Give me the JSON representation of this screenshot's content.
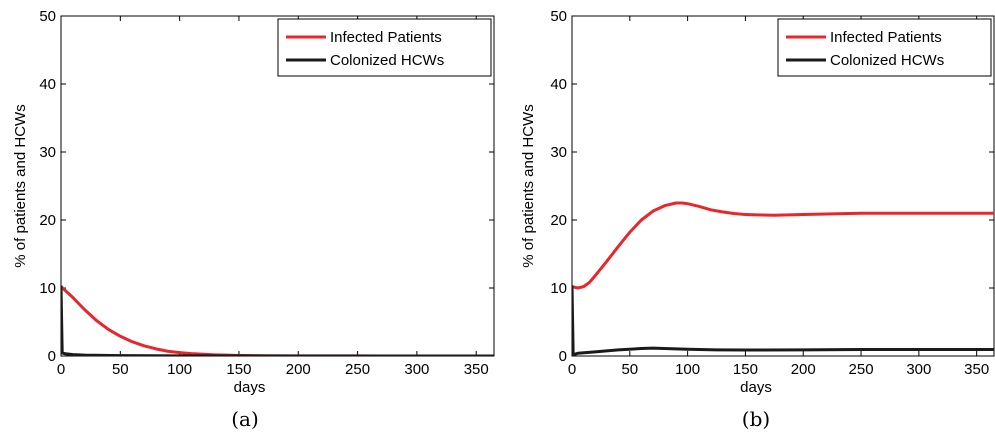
{
  "chart_data": [
    {
      "type": "line",
      "caption": "(a)",
      "xlabel": "days",
      "ylabel": "% of patients and HCWs",
      "xlim": [
        0,
        365
      ],
      "ylim": [
        0,
        50
      ],
      "xticks": [
        "0",
        "50",
        "100",
        "150",
        "200",
        "250",
        "300",
        "350"
      ],
      "yticks": [
        "0",
        "10",
        "20",
        "30",
        "40",
        "50"
      ],
      "grid": false,
      "legend_position": "top-right",
      "series": [
        {
          "name": "Infected Patients",
          "color": "#e8262b",
          "x": [
            0,
            10,
            20,
            30,
            40,
            50,
            60,
            70,
            80,
            90,
            100,
            110,
            120,
            130,
            140,
            150,
            175,
            200,
            250,
            300,
            365
          ],
          "y": [
            10.2,
            8.6,
            6.8,
            5.2,
            3.9,
            2.9,
            2.1,
            1.5,
            1.05,
            0.7,
            0.5,
            0.35,
            0.25,
            0.17,
            0.12,
            0.08,
            0.04,
            0.02,
            0.01,
            0.0,
            0.0
          ]
        },
        {
          "name": "Colonized HCWs",
          "color": "#1a1a1a",
          "x": [
            0,
            1,
            3,
            10,
            20,
            50,
            100,
            150,
            200,
            250,
            300,
            365
          ],
          "y": [
            10.2,
            0.45,
            0.35,
            0.2,
            0.12,
            0.05,
            0.02,
            0.01,
            0.0,
            0.0,
            0.0,
            0.0
          ]
        }
      ]
    },
    {
      "type": "line",
      "caption": "(b)",
      "xlabel": "days",
      "ylabel": "% of patients and HCWs",
      "xlim": [
        0,
        365
      ],
      "ylim": [
        0,
        50
      ],
      "xticks": [
        "0",
        "50",
        "100",
        "150",
        "200",
        "250",
        "300",
        "350"
      ],
      "yticks": [
        "0",
        "10",
        "20",
        "30",
        "40",
        "50"
      ],
      "grid": false,
      "legend_position": "top-right",
      "series": [
        {
          "name": "Infected Patients",
          "color": "#e8262b",
          "x": [
            0,
            5,
            10,
            15,
            20,
            30,
            40,
            50,
            60,
            70,
            80,
            90,
            95,
            100,
            110,
            120,
            130,
            140,
            150,
            160,
            175,
            200,
            225,
            250,
            275,
            300,
            325,
            350,
            365
          ],
          "y": [
            10.2,
            10.0,
            10.2,
            10.8,
            11.8,
            13.9,
            16.1,
            18.2,
            20.0,
            21.3,
            22.1,
            22.5,
            22.5,
            22.4,
            22.0,
            21.5,
            21.2,
            20.95,
            20.8,
            20.75,
            20.7,
            20.8,
            20.9,
            21.0,
            21.0,
            21.0,
            21.0,
            21.0,
            21.0
          ]
        },
        {
          "name": "Colonized HCWs",
          "color": "#1a1a1a",
          "x": [
            0,
            1,
            5,
            20,
            40,
            60,
            70,
            80,
            100,
            125,
            150,
            200,
            250,
            300,
            365
          ],
          "y": [
            10.2,
            0.2,
            0.4,
            0.6,
            0.9,
            1.1,
            1.15,
            1.1,
            1.0,
            0.9,
            0.88,
            0.9,
            0.95,
            0.95,
            0.95
          ]
        }
      ]
    }
  ]
}
